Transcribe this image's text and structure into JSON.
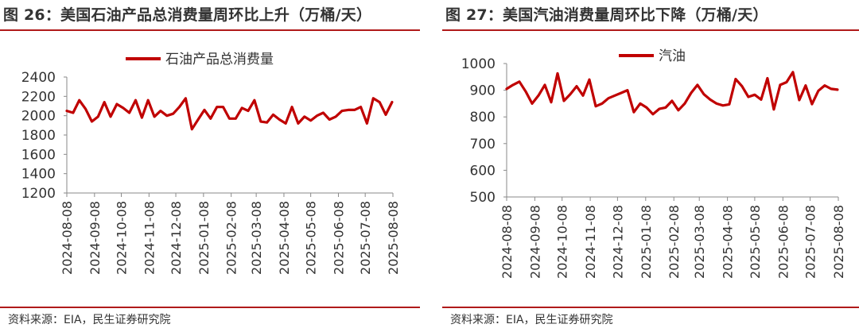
{
  "colors": {
    "series": "#c00000",
    "rule": "#b01a1a",
    "axis": "#8a8a8a"
  },
  "charts": [
    {
      "title": "图 26：美国石油产品总消费量周环比上升（万桶/天）",
      "source": "资料来源：EIA，民生证券研究院"
    },
    {
      "title": "图 27：美国汽油消费量周环比下降（万桶/天）",
      "source": "资料来源：EIA，民生证券研究院"
    }
  ],
  "chart_data": [
    {
      "type": "line",
      "title": "图 26：美国石油产品总消费量周环比上升（万桶/天）",
      "xlabel": "",
      "ylabel": "",
      "ylim": [
        1200,
        2400
      ],
      "yticks": [
        1200,
        1400,
        1600,
        1800,
        2000,
        2200,
        2400
      ],
      "xticks": [
        "2024-08-08",
        "2024-09-08",
        "2024-10-08",
        "2024-11-08",
        "2024-12-08",
        "2025-01-08",
        "2025-02-08",
        "2025-03-08",
        "2025-04-08",
        "2025-05-08",
        "2025-06-08",
        "2025-07-08",
        "2025-08-08"
      ],
      "legend": "top-center",
      "grid": false,
      "series": [
        {
          "name": "石油产品总消费量",
          "color": "#c00000",
          "points": [
            [
              "2024-08-08",
              2050
            ],
            [
              "2024-08-15",
              2030
            ],
            [
              "2024-08-22",
              2160
            ],
            [
              "2024-08-29",
              2070
            ],
            [
              "2024-09-05",
              1940
            ],
            [
              "2024-09-12",
              1990
            ],
            [
              "2024-09-19",
              2140
            ],
            [
              "2024-09-26",
              1990
            ],
            [
              "2024-10-03",
              2120
            ],
            [
              "2024-10-10",
              2080
            ],
            [
              "2024-10-17",
              2030
            ],
            [
              "2024-10-24",
              2160
            ],
            [
              "2024-10-31",
              1980
            ],
            [
              "2024-11-07",
              2160
            ],
            [
              "2024-11-14",
              1990
            ],
            [
              "2024-11-21",
              2050
            ],
            [
              "2024-11-28",
              2000
            ],
            [
              "2024-12-05",
              2020
            ],
            [
              "2024-12-12",
              2090
            ],
            [
              "2024-12-19",
              2180
            ],
            [
              "2024-12-26",
              1860
            ],
            [
              "2025-01-02",
              1960
            ],
            [
              "2025-01-09",
              2060
            ],
            [
              "2025-01-16",
              1970
            ],
            [
              "2025-01-23",
              2090
            ],
            [
              "2025-01-30",
              2090
            ],
            [
              "2025-02-06",
              1970
            ],
            [
              "2025-02-13",
              1970
            ],
            [
              "2025-02-20",
              2080
            ],
            [
              "2025-02-27",
              2050
            ],
            [
              "2025-03-06",
              2160
            ],
            [
              "2025-03-13",
              1940
            ],
            [
              "2025-03-20",
              1930
            ],
            [
              "2025-03-27",
              2010
            ],
            [
              "2025-04-03",
              1960
            ],
            [
              "2025-04-10",
              1920
            ],
            [
              "2025-04-17",
              2090
            ],
            [
              "2025-04-24",
              1920
            ],
            [
              "2025-05-01",
              1990
            ],
            [
              "2025-05-08",
              1950
            ],
            [
              "2025-05-15",
              2000
            ],
            [
              "2025-05-22",
              2030
            ],
            [
              "2025-05-29",
              1960
            ],
            [
              "2025-06-05",
              1990
            ],
            [
              "2025-06-12",
              2050
            ],
            [
              "2025-06-19",
              2060
            ],
            [
              "2025-06-26",
              2060
            ],
            [
              "2025-07-03",
              2090
            ],
            [
              "2025-07-10",
              1920
            ],
            [
              "2025-07-17",
              2180
            ],
            [
              "2025-07-24",
              2140
            ],
            [
              "2025-07-31",
              2010
            ],
            [
              "2025-08-07",
              2140
            ]
          ]
        }
      ]
    },
    {
      "type": "line",
      "title": "图 27：美国汽油消费量周环比下降（万桶/天）",
      "xlabel": "",
      "ylabel": "",
      "ylim": [
        500,
        1000
      ],
      "yticks": [
        500,
        600,
        700,
        800,
        900,
        1000
      ],
      "xticks": [
        "2024-08-08",
        "2024-09-08",
        "2024-10-08",
        "2024-11-08",
        "2024-12-08",
        "2025-01-08",
        "2025-02-08",
        "2025-03-08",
        "2025-04-08",
        "2025-05-08",
        "2025-06-08",
        "2025-07-08",
        "2025-08-08"
      ],
      "legend": "top-center",
      "grid": false,
      "series": [
        {
          "name": "汽油",
          "color": "#c00000",
          "points": [
            [
              "2024-08-08",
              905
            ],
            [
              "2024-08-15",
              920
            ],
            [
              "2024-08-22",
              932
            ],
            [
              "2024-08-29",
              895
            ],
            [
              "2024-09-05",
              850
            ],
            [
              "2024-09-12",
              880
            ],
            [
              "2024-09-19",
              920
            ],
            [
              "2024-09-26",
              855
            ],
            [
              "2024-10-03",
              963
            ],
            [
              "2024-10-10",
              860
            ],
            [
              "2024-10-17",
              885
            ],
            [
              "2024-10-24",
              915
            ],
            [
              "2024-10-31",
              880
            ],
            [
              "2024-11-07",
              940
            ],
            [
              "2024-11-14",
              840
            ],
            [
              "2024-11-21",
              850
            ],
            [
              "2024-11-28",
              870
            ],
            [
              "2024-12-05",
              880
            ],
            [
              "2024-12-12",
              890
            ],
            [
              "2024-12-19",
              900
            ],
            [
              "2024-12-26",
              818
            ],
            [
              "2025-01-02",
              850
            ],
            [
              "2025-01-09",
              835
            ],
            [
              "2025-01-16",
              810
            ],
            [
              "2025-01-23",
              830
            ],
            [
              "2025-01-30",
              835
            ],
            [
              "2025-02-06",
              860
            ],
            [
              "2025-02-13",
              825
            ],
            [
              "2025-02-20",
              850
            ],
            [
              "2025-02-27",
              890
            ],
            [
              "2025-03-06",
              920
            ],
            [
              "2025-03-13",
              885
            ],
            [
              "2025-03-20",
              865
            ],
            [
              "2025-03-27",
              850
            ],
            [
              "2025-04-03",
              843
            ],
            [
              "2025-04-10",
              847
            ],
            [
              "2025-04-17",
              942
            ],
            [
              "2025-04-24",
              915
            ],
            [
              "2025-05-01",
              875
            ],
            [
              "2025-05-08",
              883
            ],
            [
              "2025-05-15",
              865
            ],
            [
              "2025-05-22",
              945
            ],
            [
              "2025-05-29",
              828
            ],
            [
              "2025-06-05",
              920
            ],
            [
              "2025-06-12",
              930
            ],
            [
              "2025-06-19",
              968
            ],
            [
              "2025-06-26",
              863
            ],
            [
              "2025-07-03",
              918
            ],
            [
              "2025-07-10",
              848
            ],
            [
              "2025-07-17",
              898
            ],
            [
              "2025-07-24",
              918
            ],
            [
              "2025-07-31",
              905
            ],
            [
              "2025-08-07",
              902
            ]
          ]
        }
      ]
    }
  ]
}
